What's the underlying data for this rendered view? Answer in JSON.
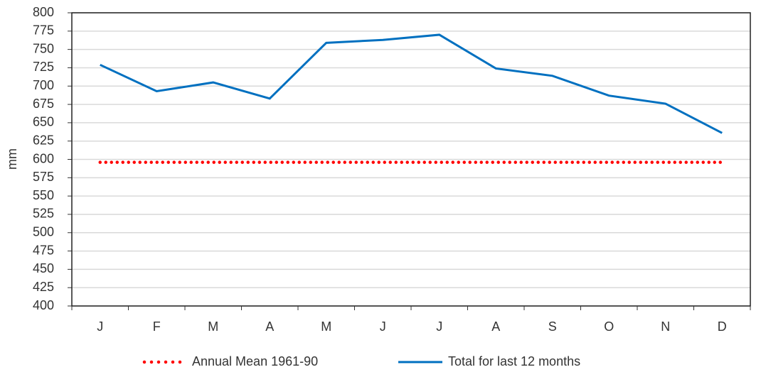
{
  "chart_data": {
    "type": "line",
    "y_label": "mm",
    "categories": [
      "J",
      "F",
      "M",
      "A",
      "M",
      "J",
      "J",
      "A",
      "S",
      "O",
      "N",
      "D"
    ],
    "series": [
      {
        "name": "Annual Mean 1961-90",
        "color": "#ff0000",
        "line_style": "dotted",
        "values": [
          596,
          596,
          596,
          596,
          596,
          596,
          596,
          596,
          596,
          596,
          596,
          596
        ]
      },
      {
        "name": "Total for last 12 months",
        "color": "#0070c0",
        "line_style": "solid",
        "values": [
          729,
          693,
          705,
          683,
          759,
          763,
          770,
          724,
          714,
          687,
          676,
          636
        ]
      }
    ],
    "ylim": [
      400,
      800
    ],
    "yticks": [
      400,
      425,
      450,
      475,
      500,
      525,
      550,
      575,
      600,
      625,
      650,
      675,
      700,
      725,
      750,
      775,
      800
    ],
    "grid": true
  }
}
